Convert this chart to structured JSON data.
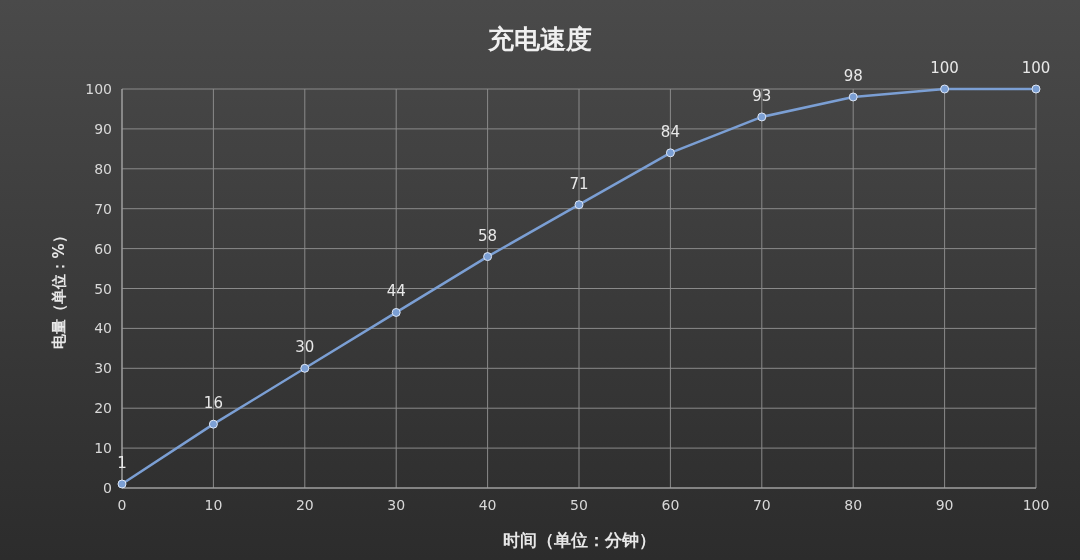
{
  "chart_data": {
    "type": "line",
    "title": "充电速度",
    "xlabel": "时间（单位：分钟）",
    "ylabel": "电量（单位：%）",
    "x": [
      0,
      10,
      20,
      30,
      40,
      50,
      60,
      70,
      80,
      90,
      100
    ],
    "series": [
      {
        "color": "#7b9fd4",
        "values": [
          1,
          16,
          30,
          44,
          58,
          71,
          84,
          93,
          98,
          100,
          100
        ]
      }
    ],
    "xlim": [
      0,
      100
    ],
    "xticks": [
      0,
      10,
      20,
      30,
      40,
      50,
      60,
      70,
      80,
      90,
      100
    ],
    "ylim": [
      0,
      100
    ],
    "yticks": [
      0,
      10,
      20,
      30,
      40,
      50,
      60,
      70,
      80,
      90,
      100
    ],
    "grid": true,
    "marker": "circle",
    "line_style": "solid",
    "data_labels": true
  }
}
